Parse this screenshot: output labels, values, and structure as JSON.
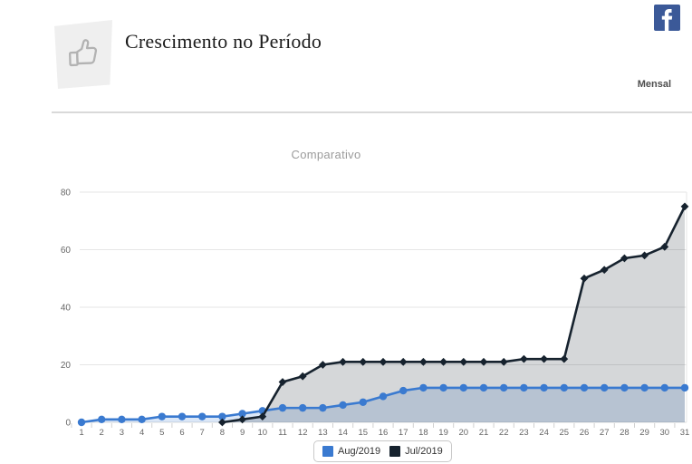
{
  "header": {
    "title": "Crescimento no Período",
    "period_label": "Mensal"
  },
  "colors": {
    "facebook_blue": "#3b5998",
    "aug_blue": "#3a7ad0",
    "jul_navy": "#16222e",
    "grid_line": "#e6e6e6",
    "axis_text": "#666666",
    "divider_gray": "#d9d9d9",
    "chart_title_gray": "#9b9b9b",
    "card_gray": "#efefef"
  },
  "chart_data": {
    "type": "area",
    "title": "Comparativo",
    "categories": [
      1,
      2,
      3,
      4,
      5,
      6,
      7,
      8,
      9,
      10,
      11,
      12,
      13,
      14,
      15,
      16,
      17,
      18,
      19,
      20,
      21,
      22,
      23,
      24,
      25,
      26,
      27,
      28,
      29,
      30,
      31
    ],
    "yticks": [
      0,
      20,
      40,
      60,
      80
    ],
    "ylim": [
      0,
      80
    ],
    "grid": true,
    "legend_position": "bottom",
    "series": [
      {
        "name": "Aug/2019",
        "color": "#3a7ad0",
        "fill": "rgba(58,122,208,0.18)",
        "marker": "circle",
        "values": [
          0,
          1,
          1,
          1,
          2,
          2,
          2,
          2,
          3,
          4,
          5,
          5,
          5,
          6,
          7,
          9,
          11,
          12,
          12,
          12,
          12,
          12,
          12,
          12,
          12,
          12,
          12,
          12,
          12,
          12,
          12
        ]
      },
      {
        "name": "Jul/2019",
        "color": "#16222e",
        "fill": "rgba(22,34,46,0.18)",
        "marker": "diamond",
        "values": [
          null,
          null,
          null,
          null,
          null,
          null,
          null,
          0,
          1,
          2,
          14,
          16,
          20,
          21,
          21,
          21,
          21,
          21,
          21,
          21,
          21,
          21,
          22,
          22,
          22,
          50,
          53,
          57,
          58,
          61,
          75
        ]
      }
    ]
  }
}
